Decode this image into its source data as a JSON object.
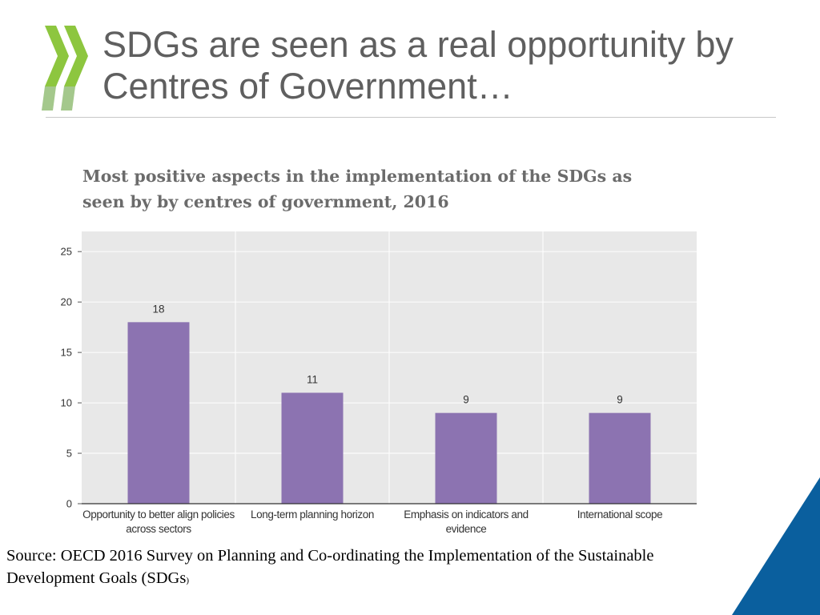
{
  "slide": {
    "title_line1": "SDGs are seen as a real opportunity by",
    "title_line2": "Centres of Government…"
  },
  "chart_data": {
    "type": "bar",
    "title": "Most positive aspects in the implementation of the SDGs as seen by by centres of government, 2016",
    "title_line1": "Most positive aspects in the implementation of the SDGs as",
    "title_line2": "seen by by centres of government, 2016",
    "categories": [
      [
        "Opportunity to better align policies",
        "across sectors"
      ],
      [
        "Long-term planning horizon"
      ],
      [
        "Emphasis on indicators and",
        "evidence"
      ],
      [
        "International scope"
      ]
    ],
    "values": [
      18,
      11,
      9,
      9
    ],
    "data_labels": [
      "18",
      "11",
      "9",
      "9"
    ],
    "ylim": [
      0,
      27
    ],
    "yticks": [
      0,
      5,
      10,
      15,
      20,
      25
    ],
    "xlabel": "",
    "ylabel": "",
    "grid": true,
    "bar_color": "#8c73b1",
    "plot_bg": "#e8e8e8"
  },
  "source": {
    "text": "Source: OECD 2016 Survey on Planning and Co-ordinating the Implementation of the Sustainable Development Goals (SDGs",
    "close_paren": ")"
  },
  "colors": {
    "logo_light": "#8dc63f",
    "logo_dark": "#5a9a2e",
    "corner": "#0a5f9e"
  }
}
